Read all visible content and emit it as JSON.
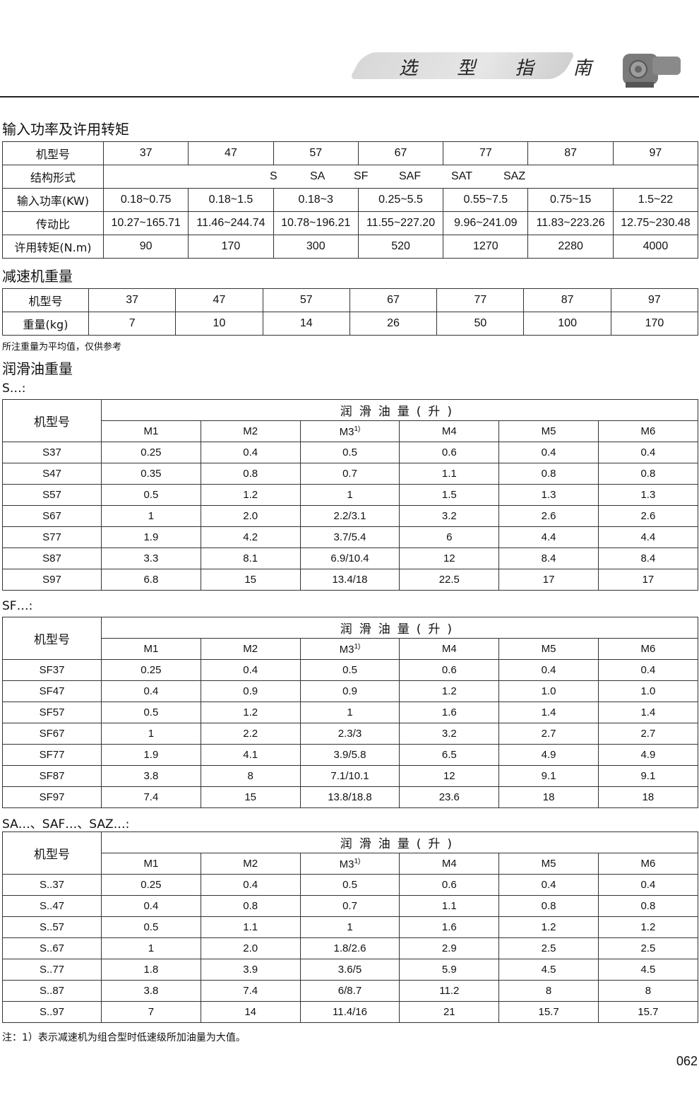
{
  "header": {
    "title": "选 型 指 南",
    "product_image": "gear-motor-image"
  },
  "section1": {
    "title": "输入功率及许用转矩",
    "model_label": "机型号",
    "models": [
      "37",
      "47",
      "57",
      "67",
      "77",
      "87",
      "97"
    ],
    "structure_label": "结构形式",
    "structures": [
      "S",
      "SA",
      "SF",
      "SAF",
      "SAT",
      "SAZ"
    ],
    "rows": [
      {
        "label": "输入功率(KW)",
        "values": [
          "0.18~0.75",
          "0.18~1.5",
          "0.18~3",
          "0.25~5.5",
          "0.55~7.5",
          "0.75~15",
          "1.5~22"
        ]
      },
      {
        "label": "传动比",
        "values": [
          "10.27~165.71",
          "11.46~244.74",
          "10.78~196.21",
          "11.55~227.20",
          "9.96~241.09",
          "11.83~223.26",
          "12.75~230.48"
        ]
      },
      {
        "label": "许用转矩(N.m)",
        "values": [
          "90",
          "170",
          "300",
          "520",
          "1270",
          "2280",
          "4000"
        ]
      }
    ]
  },
  "section2": {
    "title": "减速机重量",
    "model_label": "机型号",
    "models": [
      "37",
      "47",
      "57",
      "67",
      "77",
      "87",
      "97"
    ],
    "weight_label": "重量(kg)",
    "weights": [
      "7",
      "10",
      "14",
      "26",
      "50",
      "100",
      "170"
    ],
    "note": "所注重量为平均值，仅供参考"
  },
  "section3": {
    "title": "润滑油重量",
    "tables": [
      {
        "label": "S…:",
        "model_label": "机型号",
        "group_header": "润滑油量(升)",
        "columns": [
          "M1",
          "M2",
          "M3",
          "M4",
          "M5",
          "M6"
        ],
        "m3_footnote": "1)",
        "rows": [
          [
            "S37",
            "0.25",
            "0.4",
            "0.5",
            "0.6",
            "0.4",
            "0.4"
          ],
          [
            "S47",
            "0.35",
            "0.8",
            "0.7",
            "1.1",
            "0.8",
            "0.8"
          ],
          [
            "S57",
            "0.5",
            "1.2",
            "1",
            "1.5",
            "1.3",
            "1.3"
          ],
          [
            "S67",
            "1",
            "2.0",
            "2.2/3.1",
            "3.2",
            "2.6",
            "2.6"
          ],
          [
            "S77",
            "1.9",
            "4.2",
            "3.7/5.4",
            "6",
            "4.4",
            "4.4"
          ],
          [
            "S87",
            "3.3",
            "8.1",
            "6.9/10.4",
            "12",
            "8.4",
            "8.4"
          ],
          [
            "S97",
            "6.8",
            "15",
            "13.4/18",
            "22.5",
            "17",
            "17"
          ]
        ]
      },
      {
        "label": "SF…:",
        "model_label": "机型号",
        "group_header": "润滑油量(升)",
        "columns": [
          "M1",
          "M2",
          "M3",
          "M4",
          "M5",
          "M6"
        ],
        "m3_footnote": "1)",
        "rows": [
          [
            "SF37",
            "0.25",
            "0.4",
            "0.5",
            "0.6",
            "0.4",
            "0.4"
          ],
          [
            "SF47",
            "0.4",
            "0.9",
            "0.9",
            "1.2",
            "1.0",
            "1.0"
          ],
          [
            "SF57",
            "0.5",
            "1.2",
            "1",
            "1.6",
            "1.4",
            "1.4"
          ],
          [
            "SF67",
            "1",
            "2.2",
            "2.3/3",
            "3.2",
            "2.7",
            "2.7"
          ],
          [
            "SF77",
            "1.9",
            "4.1",
            "3.9/5.8",
            "6.5",
            "4.9",
            "4.9"
          ],
          [
            "SF87",
            "3.8",
            "8",
            "7.1/10.1",
            "12",
            "9.1",
            "9.1"
          ],
          [
            "SF97",
            "7.4",
            "15",
            "13.8/18.8",
            "23.6",
            "18",
            "18"
          ]
        ]
      },
      {
        "label": "SA…、SAF…、SAZ…:",
        "model_label": "机型号",
        "group_header": "润滑油量(升)",
        "columns": [
          "M1",
          "M2",
          "M3",
          "M4",
          "M5",
          "M6"
        ],
        "m3_footnote": "1)",
        "rows": [
          [
            "S..37",
            "0.25",
            "0.4",
            "0.5",
            "0.6",
            "0.4",
            "0.4"
          ],
          [
            "S..47",
            "0.4",
            "0.8",
            "0.7",
            "1.1",
            "0.8",
            "0.8"
          ],
          [
            "S..57",
            "0.5",
            "1.1",
            "1",
            "1.6",
            "1.2",
            "1.2"
          ],
          [
            "S..67",
            "1",
            "2.0",
            "1.8/2.6",
            "2.9",
            "2.5",
            "2.5"
          ],
          [
            "S..77",
            "1.8",
            "3.9",
            "3.6/5",
            "5.9",
            "4.5",
            "4.5"
          ],
          [
            "S..87",
            "3.8",
            "7.4",
            "6/8.7",
            "11.2",
            "8",
            "8"
          ],
          [
            "S..97",
            "7",
            "14",
            "11.4/16",
            "21",
            "15.7",
            "15.7"
          ]
        ]
      }
    ],
    "footnote": "注：1）表示减速机为组合型时低速级所加油量为大值。"
  },
  "page_number": "062"
}
